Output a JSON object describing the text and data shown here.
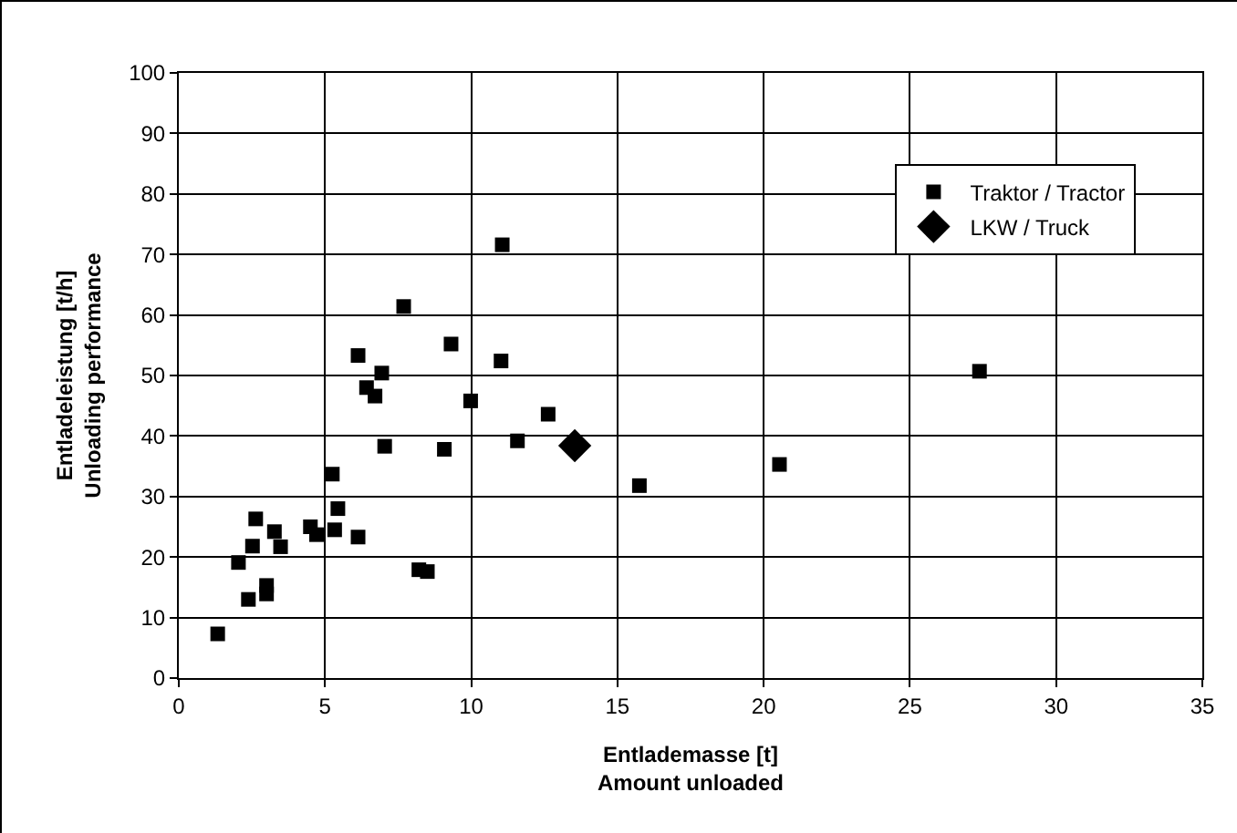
{
  "chart_data": {
    "type": "scatter",
    "xlabel": "Entlademasse [t]\nAmount unloaded",
    "ylabel": "Entladeleistung [t/h]\nUnloading performance",
    "xlim": [
      0,
      35
    ],
    "xticks": [
      0,
      5,
      10,
      15,
      20,
      25,
      30,
      35
    ],
    "ylim": [
      0,
      100
    ],
    "yticks": [
      0,
      10,
      20,
      30,
      40,
      50,
      60,
      70,
      80,
      90,
      100
    ],
    "grid": true,
    "legend": "top right",
    "series": [
      {
        "name": "Traktor / Tractor",
        "color": "#000000",
        "marker": "square",
        "x": [
          1.33,
          2.38,
          3.0,
          3.0,
          2.04,
          2.52,
          2.63,
          3.27,
          3.48,
          4.5,
          4.71,
          5.33,
          5.44,
          6.13,
          5.25,
          7.04,
          9.08,
          8.21,
          8.5,
          6.13,
          6.94,
          6.42,
          6.71,
          7.69,
          9.31,
          9.98,
          11.06,
          11.02,
          12.63,
          11.58,
          15.75,
          20.54,
          27.38
        ],
        "values": [
          7.3,
          13.0,
          15.3,
          13.9,
          19.1,
          21.8,
          26.3,
          24.2,
          21.7,
          25.0,
          23.7,
          24.5,
          28.0,
          23.3,
          33.7,
          38.3,
          37.8,
          17.9,
          17.6,
          53.3,
          50.4,
          48.0,
          46.6,
          61.4,
          55.2,
          45.8,
          71.6,
          52.4,
          43.6,
          39.2,
          31.8,
          35.3,
          50.7
        ]
      },
      {
        "name": "LKW / Truck",
        "color": "#000000",
        "marker": "diamond",
        "x": [
          13.54
        ],
        "values": [
          38.4
        ]
      }
    ]
  }
}
